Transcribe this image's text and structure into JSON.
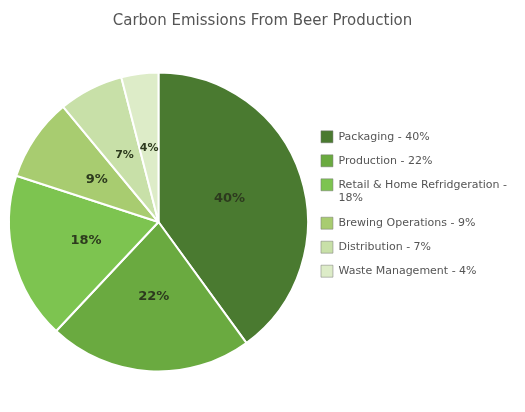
{
  "chart_data": {
    "type": "pie",
    "title": "Carbon Emissions From Beer Production",
    "categories": [
      "Packaging - 40%",
      "Production - 22%",
      "Retail & Home Refridgeration -\n18%",
      "Brewing Operations - 9%",
      "Distribution - 7%",
      "Waste Management - 4%"
    ],
    "values": [
      40,
      22,
      18,
      9,
      7,
      4
    ],
    "value_labels": [
      "40%",
      "22%",
      "18%",
      "9%",
      "7%",
      "4%"
    ],
    "data_labels": true,
    "colors": [
      "#4a7a30",
      "#6aaa40",
      "#7dc450",
      "#a8cc70",
      "#c8e0a8",
      "#ddecc8"
    ],
    "legend": "right"
  }
}
